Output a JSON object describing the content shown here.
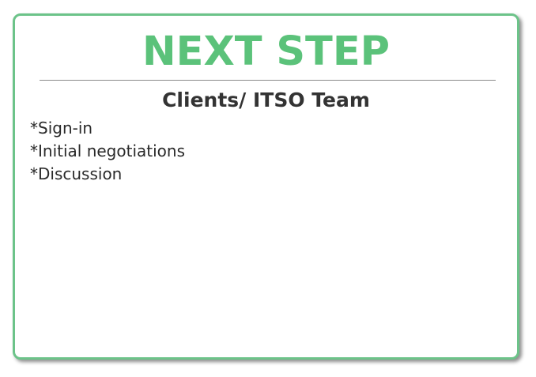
{
  "card": {
    "title": "NEXT STEP",
    "subtitle": "Clients/ ITSO Team",
    "steps": [
      "*Sign-in",
      "*Initial negotiations",
      "*Discussion"
    ]
  },
  "colors": {
    "accent": "#5bc27a",
    "border": "#6cc389",
    "text": "#333333"
  }
}
